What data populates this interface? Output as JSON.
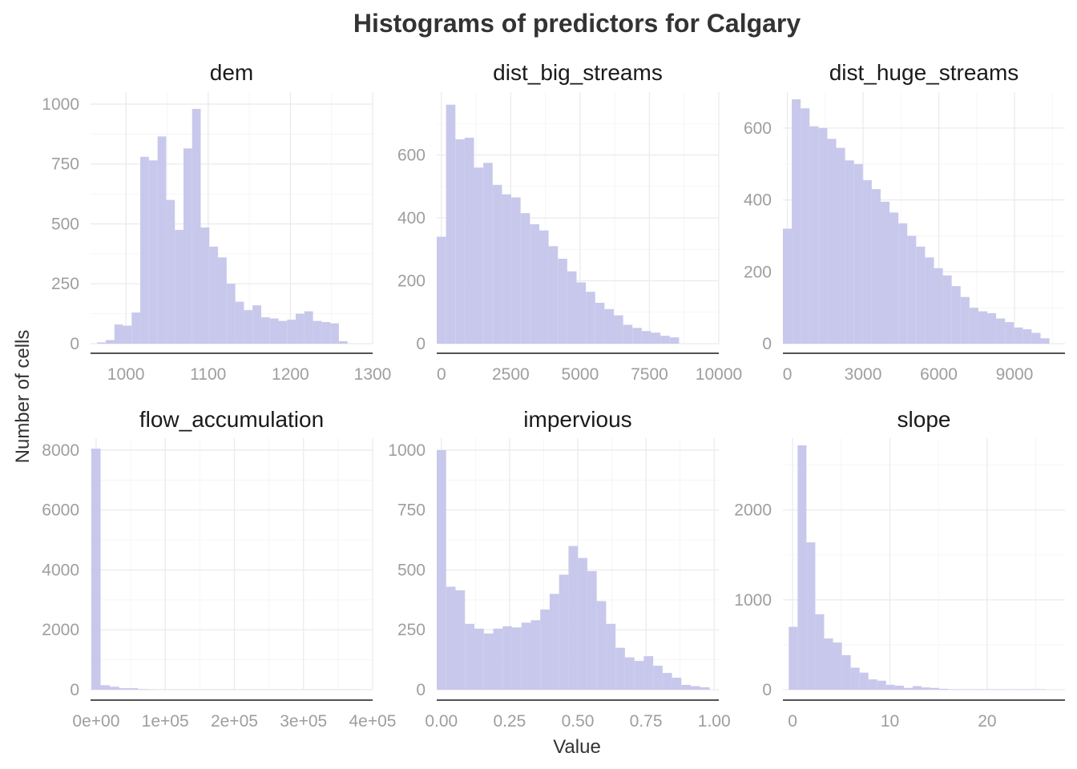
{
  "chart_data": {
    "type": "bar",
    "title": "Histograms of predictors for Calgary",
    "xlabel": "Value",
    "ylabel": "Number of cells",
    "bar_color": "#c8c8ec",
    "facets": [
      {
        "name": "dem",
        "xlim": [
          957,
          1300
        ],
        "ylim": [
          0,
          1050
        ],
        "xticks": [
          1000,
          1100,
          1200,
          1300
        ],
        "xtick_labels": [
          "1000",
          "1100",
          "1200",
          "1300"
        ],
        "yticks": [
          0,
          250,
          500,
          750,
          1000
        ],
        "ytick_labels": [
          "0",
          "250",
          "500",
          "750",
          "1000"
        ],
        "bin_start": 965,
        "bin_width": 10.5,
        "values": [
          5,
          15,
          80,
          75,
          130,
          780,
          765,
          865,
          600,
          475,
          815,
          980,
          485,
          405,
          360,
          250,
          175,
          140,
          160,
          110,
          105,
          95,
          100,
          125,
          135,
          95,
          90,
          85,
          10
        ]
      },
      {
        "name": "dist_big_streams",
        "xlim": [
          -168,
          10000
        ],
        "ylim": [
          0,
          800
        ],
        "xticks": [
          0,
          2500,
          5000,
          7500,
          10000
        ],
        "xtick_labels": [
          "0",
          "2500",
          "5000",
          "7500",
          "10000"
        ],
        "yticks": [
          0,
          200,
          400,
          600
        ],
        "ytick_labels": [
          "0",
          "200",
          "400",
          "600"
        ],
        "bin_start": -168,
        "bin_width": 336,
        "values": [
          340,
          760,
          650,
          655,
          560,
          575,
          505,
          475,
          465,
          415,
          380,
          360,
          310,
          270,
          230,
          195,
          165,
          130,
          110,
          90,
          60,
          50,
          40,
          35,
          25,
          20
        ]
      },
      {
        "name": "dist_huge_streams",
        "xlim": [
          -176,
          11000
        ],
        "ylim": [
          0,
          700
        ],
        "xticks": [
          0,
          3000,
          6000,
          9000
        ],
        "xtick_labels": [
          "0",
          "3000",
          "6000",
          "9000"
        ],
        "yticks": [
          0,
          200,
          400,
          600
        ],
        "ytick_labels": [
          "0",
          "200",
          "400",
          "600"
        ],
        "bin_start": -176,
        "bin_width": 352,
        "values": [
          320,
          680,
          655,
          605,
          600,
          570,
          545,
          510,
          500,
          455,
          430,
          395,
          365,
          335,
          300,
          270,
          240,
          210,
          190,
          160,
          130,
          100,
          90,
          85,
          70,
          60,
          45,
          40,
          30,
          15
        ]
      },
      {
        "name": "flow_accumulation",
        "xlim": [
          -8000,
          400000
        ],
        "ylim": [
          0,
          8400
        ],
        "xticks": [
          0,
          100000,
          200000,
          300000,
          400000
        ],
        "xtick_labels": [
          "0e+00",
          "1e+05",
          "2e+05",
          "3e+05",
          "4e+05"
        ],
        "yticks": [
          0,
          2000,
          4000,
          6000,
          8000
        ],
        "ytick_labels": [
          "0",
          "2000",
          "4000",
          "6000",
          "8000"
        ],
        "bin_start": -7000,
        "bin_width": 13500,
        "values": [
          8050,
          150,
          100,
          50,
          50,
          20,
          10,
          5,
          5,
          5,
          5,
          5,
          5,
          5,
          5,
          5,
          5,
          5,
          5,
          5,
          5,
          5,
          5,
          5,
          5,
          5,
          5,
          5,
          5
        ]
      },
      {
        "name": "impervious",
        "xlim": [
          -0.017,
          1.017
        ],
        "ylim": [
          0,
          1050
        ],
        "xticks": [
          0,
          0.25,
          0.5,
          0.75,
          1.0
        ],
        "xtick_labels": [
          "0.00",
          "0.25",
          "0.50",
          "0.75",
          "1.00"
        ],
        "yticks": [
          0,
          250,
          500,
          750,
          1000
        ],
        "ytick_labels": [
          "0",
          "250",
          "500",
          "750",
          "1000"
        ],
        "bin_start": -0.017,
        "bin_width": 0.0345,
        "values": [
          1000,
          430,
          415,
          275,
          255,
          235,
          255,
          265,
          260,
          280,
          290,
          335,
          400,
          480,
          600,
          550,
          495,
          370,
          275,
          175,
          135,
          120,
          140,
          100,
          70,
          50,
          20,
          15,
          10
        ]
      },
      {
        "name": "slope",
        "xlim": [
          -1,
          28
        ],
        "ylim": [
          0,
          2800
        ],
        "xticks": [
          0,
          10,
          20
        ],
        "xtick_labels": [
          "0",
          "10",
          "20"
        ],
        "yticks": [
          0,
          1000,
          2000
        ],
        "ytick_labels": [
          "0",
          "1000",
          "2000"
        ],
        "bin_start": -0.4,
        "bin_width": 0.91,
        "values": [
          700,
          2720,
          1640,
          840,
          570,
          525,
          385,
          245,
          190,
          115,
          100,
          55,
          45,
          20,
          40,
          25,
          20,
          10,
          5,
          5,
          5,
          5,
          5,
          5,
          5,
          5,
          5,
          5,
          5
        ]
      }
    ]
  }
}
